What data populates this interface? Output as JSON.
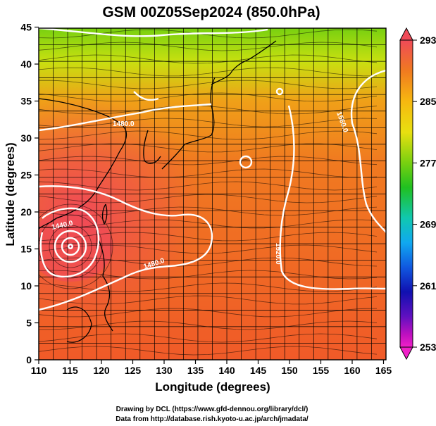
{
  "title": "GSM 00Z05Sep2024 (850.0hPa)",
  "x_axis": {
    "label": "Longitude (degrees)",
    "ticks": [
      "110",
      "115",
      "120",
      "125",
      "130",
      "135",
      "140",
      "145",
      "150",
      "155",
      "160",
      "165"
    ]
  },
  "y_axis": {
    "label": "Latitude  (degrees)",
    "ticks": [
      "0",
      "5",
      "10",
      "15",
      "20",
      "25",
      "30",
      "35",
      "40",
      "45"
    ]
  },
  "colorbar": {
    "labels": [
      "293",
      "285",
      "277",
      "269",
      "261",
      "253"
    ],
    "colors": [
      "#f04a58",
      "#f07a20",
      "#f6b810",
      "#e8e010",
      "#78d010",
      "#20c020",
      "#10c8b0",
      "#10a8f0",
      "#1058e0",
      "#1010b0",
      "#6010c0",
      "#c010c0",
      "#f020c8"
    ]
  },
  "contour_labels": [
    "1480.0",
    "1560.0",
    "1440.0",
    "1480.0",
    "1520.0"
  ],
  "credits": {
    "line1": "Drawing by DCL (https://www.gfd-dennou.org/library/dcl/)",
    "line2": "Data from http://database.rish.kyoto-u.ac.jp/arch/jmadata/"
  }
}
